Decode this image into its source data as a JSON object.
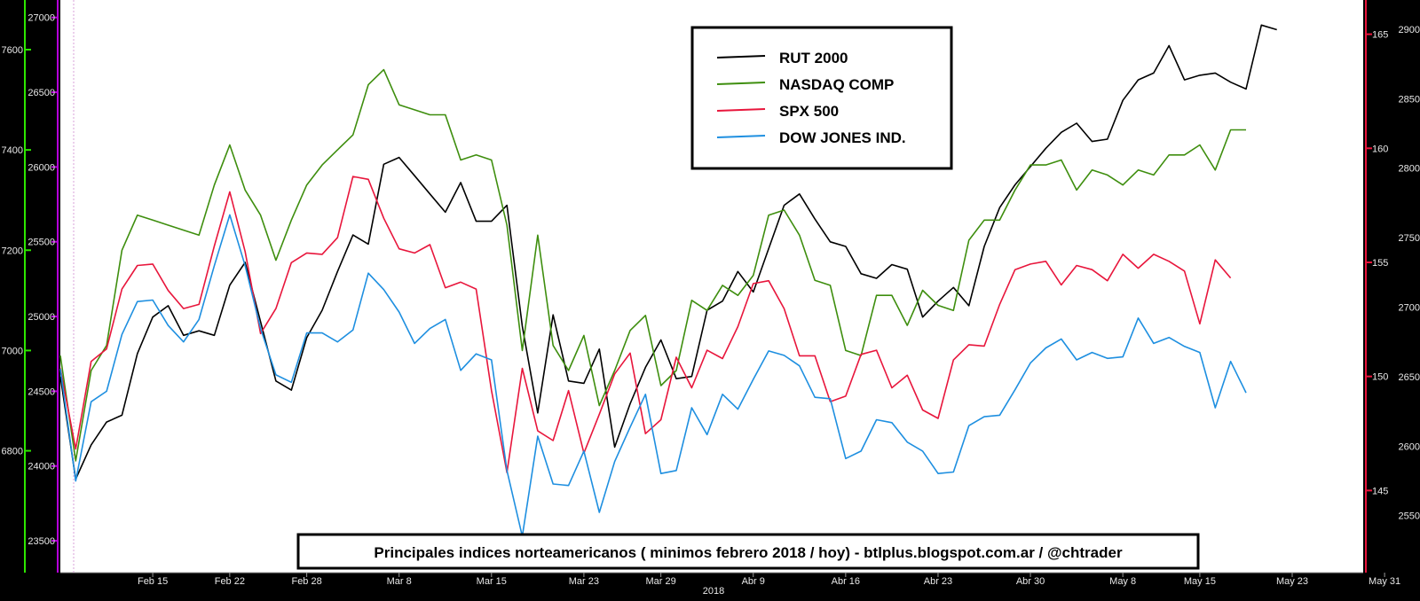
{
  "chart_data": {
    "type": "line",
    "title": "Principales indices norteamericanos ( minimos febrero 2018 / hoy) - btlplus.blogspot.com.ar / @chtrader",
    "xlabel": "2018",
    "x_ticks": [
      "Feb 15",
      "Feb 22",
      "Feb 28",
      "Mar 8",
      "Mar 15",
      "Mar 23",
      "Mar 29",
      "Abr 9",
      "Abr 16",
      "Abr 23",
      "Abr 30",
      "May 8",
      "May 15",
      "May 23",
      "May 31"
    ],
    "x_tick_index": [
      6,
      11,
      16,
      22,
      28,
      34,
      39,
      45,
      51,
      57,
      63,
      69,
      74,
      80,
      86
    ],
    "n_points": 87,
    "axes": {
      "left_outer": {
        "label_ticks": [
          6800,
          7000,
          7200,
          7400,
          7600
        ],
        "ylim": [
          6557,
          7699
        ]
      },
      "left_inner": {
        "label_ticks": [
          23500,
          24000,
          24500,
          25000,
          25500,
          26000,
          26500,
          27000
        ],
        "ylim": [
          23287,
          27117
        ]
      },
      "right_inner": {
        "label_ticks": [
          145,
          150,
          155,
          160,
          165
        ],
        "ylim": [
          141.4,
          166.5
        ]
      },
      "right_outer": {
        "label_ticks": [
          2550,
          2600,
          2650,
          2700,
          2750,
          2800,
          2850,
          2900
        ],
        "ylim": [
          2509,
          2921
        ]
      }
    },
    "legend_position": "top-center",
    "grid": false,
    "series": [
      {
        "name": "RUT 2000",
        "color": "#000000",
        "axis": "right_inner",
        "values": [
          150.0,
          145.5,
          147.0,
          148.0,
          148.3,
          151.0,
          152.6,
          153.1,
          151.8,
          152.0,
          151.8,
          154.0,
          155.0,
          152.4,
          149.8,
          149.4,
          151.7,
          152.9,
          154.6,
          156.2,
          155.8,
          159.3,
          159.6,
          158.8,
          158.0,
          157.2,
          158.5,
          156.8,
          156.8,
          157.5,
          152.2,
          148.4,
          152.7,
          149.8,
          149.7,
          151.2,
          146.9,
          148.8,
          150.4,
          151.6,
          149.9,
          150.0,
          152.9,
          153.3,
          154.6,
          153.7,
          155.6,
          157.5,
          158.0,
          156.9,
          155.9,
          155.7,
          154.5,
          154.3,
          154.9,
          154.7,
          152.6,
          153.3,
          153.9,
          153.1,
          155.7,
          157.4,
          158.4,
          159.2,
          160.0,
          160.7,
          161.1,
          160.3,
          160.4,
          162.1,
          163.0,
          163.3,
          164.5,
          163.0,
          163.2,
          163.3,
          162.9,
          162.6,
          165.4,
          165.2
        ]
      },
      {
        "name": "NASDAQ COMP",
        "color": "#3e8e0e",
        "axis": "left_outer",
        "values": [
          6990,
          6780,
          6960,
          7010,
          7200,
          7270,
          7260,
          7250,
          7240,
          7230,
          7330,
          7410,
          7320,
          7270,
          7180,
          7260,
          7330,
          7370,
          7400,
          7430,
          7530,
          7560,
          7490,
          7480,
          7470,
          7470,
          7380,
          7390,
          7380,
          7250,
          7000,
          7230,
          7010,
          6960,
          7030,
          6890,
          6960,
          7040,
          7070,
          6930,
          6960,
          7100,
          7080,
          7130,
          7110,
          7150,
          7270,
          7280,
          7230,
          7140,
          7130,
          7000,
          6990,
          7110,
          7110,
          7050,
          7120,
          7090,
          7080,
          7220,
          7260,
          7260,
          7320,
          7370,
          7370,
          7380,
          7320,
          7360,
          7350,
          7330,
          7360,
          7350,
          7390,
          7390,
          7410,
          7360,
          7440,
          7440
        ]
      },
      {
        "name": "SPX 500",
        "color": "#e8163c",
        "axis": "right_outer",
        "values": [
          2656,
          2598,
          2661,
          2670,
          2713,
          2730,
          2731,
          2712,
          2699,
          2702,
          2744,
          2783,
          2740,
          2681,
          2699,
          2732,
          2739,
          2738,
          2750,
          2794,
          2792,
          2764,
          2742,
          2739,
          2745,
          2714,
          2718,
          2713,
          2640,
          2581,
          2656,
          2611,
          2604,
          2640,
          2595,
          2623,
          2652,
          2667,
          2609,
          2619,
          2664,
          2642,
          2669,
          2663,
          2686,
          2717,
          2719,
          2699,
          2665,
          2665,
          2632,
          2636,
          2666,
          2669,
          2642,
          2651,
          2626,
          2620,
          2662,
          2673,
          2672,
          2702,
          2727,
          2731,
          2733,
          2716,
          2730,
          2727,
          2719,
          2738,
          2728,
          2738,
          2733,
          2726,
          2688,
          2734,
          2721
        ]
      },
      {
        "name": "DOW JONES IND.",
        "color": "#1e8fe0",
        "axis": "left_inner",
        "values": [
          24650,
          23900,
          24430,
          24500,
          24880,
          25100,
          25110,
          24940,
          24830,
          24980,
          25340,
          25680,
          25340,
          24920,
          24610,
          24560,
          24890,
          24890,
          24830,
          24910,
          25290,
          25180,
          25030,
          24820,
          24920,
          24980,
          24640,
          24750,
          24710,
          23970,
          23530,
          24200,
          23880,
          23870,
          24100,
          23690,
          24030,
          24260,
          24480,
          23950,
          23970,
          24390,
          24210,
          24480,
          24380,
          24580,
          24770,
          24740,
          24670,
          24460,
          24450,
          24050,
          24100,
          24310,
          24290,
          24160,
          24100,
          23950,
          23960,
          24270,
          24330,
          24340,
          24510,
          24690,
          24790,
          24850,
          24710,
          24760,
          24720,
          24730,
          24990,
          24820,
          24860,
          24800,
          24760,
          24390,
          24700,
          24490
        ]
      }
    ]
  }
}
